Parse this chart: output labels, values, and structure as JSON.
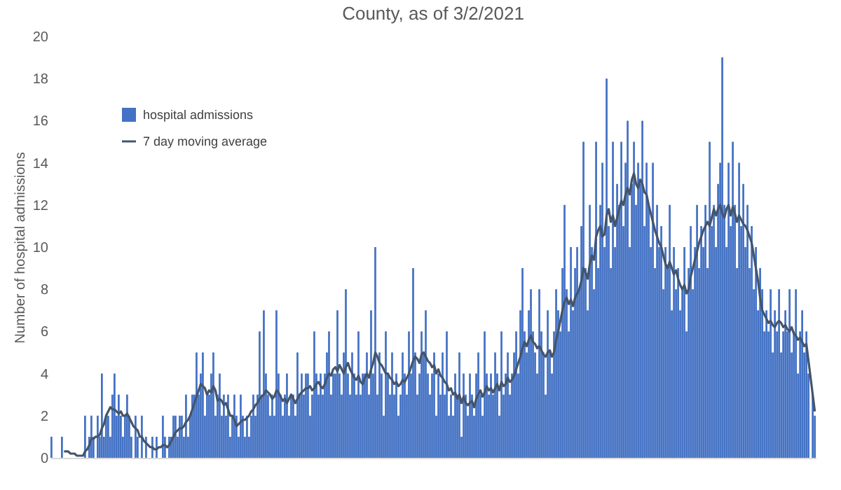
{
  "chart_data": {
    "type": "bar",
    "title": "County, as of 3/2/2021",
    "ylabel": "Number of hospital admissions",
    "ylim": [
      0,
      20
    ],
    "yticks": [
      0,
      2,
      4,
      6,
      8,
      10,
      12,
      14,
      16,
      18,
      20
    ],
    "grid": false,
    "legend": "top left",
    "categories": [
      null,
      null,
      null,
      null,
      null,
      null,
      null,
      null,
      null,
      null,
      null,
      null,
      null,
      null,
      null,
      null,
      null,
      null,
      null,
      null,
      null,
      null,
      null,
      null,
      null,
      null,
      null,
      null,
      null,
      null,
      null,
      null,
      null,
      null,
      null,
      null,
      null,
      null,
      null,
      null,
      null,
      null,
      null,
      null,
      null,
      null,
      null,
      null,
      null,
      null,
      null,
      null,
      null,
      null,
      null,
      null,
      null,
      null,
      null,
      null,
      null,
      null,
      null,
      null,
      null,
      null,
      null,
      null,
      null,
      null,
      null,
      null,
      null,
      null,
      null,
      null,
      null,
      null,
      null,
      null,
      null,
      null,
      null,
      null,
      null,
      null,
      null,
      null,
      null,
      null,
      null,
      null,
      null,
      null,
      null,
      null,
      null,
      null,
      null,
      null,
      null,
      null,
      null,
      null,
      null,
      null,
      null,
      null,
      null,
      null,
      null,
      null,
      null,
      null,
      null,
      null,
      null,
      null,
      null,
      null,
      null,
      null,
      null,
      null,
      null,
      null,
      null,
      null,
      null,
      null,
      null,
      null,
      null,
      null,
      null,
      null,
      null,
      null,
      null,
      null,
      null,
      null,
      null,
      null,
      null,
      null,
      null,
      null,
      null,
      null,
      null,
      null,
      null,
      null,
      null,
      null,
      null,
      null,
      null,
      null,
      null,
      null,
      null,
      null,
      null,
      null,
      null,
      null,
      null,
      null,
      null,
      null,
      null,
      null,
      null,
      null,
      null,
      null,
      null,
      null,
      null,
      null,
      null,
      null,
      null,
      null,
      null,
      null,
      null,
      null,
      null,
      null,
      null,
      null,
      null,
      null,
      null,
      null,
      null,
      null,
      null,
      null,
      null,
      null,
      null,
      null,
      null,
      null,
      null,
      null,
      null,
      null,
      null,
      null,
      null,
      null,
      null,
      null,
      null,
      null,
      null,
      null,
      null,
      null,
      null,
      null,
      null,
      null,
      null,
      null,
      null,
      null,
      null,
      null,
      null,
      null,
      null,
      null,
      null,
      null,
      null,
      null,
      null,
      null,
      null,
      null,
      null,
      null,
      null,
      null,
      null,
      null,
      null,
      null,
      null,
      null,
      null,
      null,
      null,
      null,
      null,
      null,
      null,
      null,
      null,
      null,
      null,
      null,
      null,
      null,
      null,
      null,
      null,
      null,
      null,
      null,
      null,
      null,
      null,
      null,
      null,
      null,
      null,
      null,
      null,
      null,
      null,
      null,
      null,
      null,
      null,
      null,
      null,
      null,
      null,
      null,
      null,
      null,
      null,
      null,
      null,
      null,
      null,
      null,
      null,
      null,
      null,
      null,
      null,
      null,
      null,
      null,
      null,
      null,
      null,
      null,
      null,
      null,
      null,
      null,
      null,
      null,
      null,
      null,
      null,
      null,
      null,
      null,
      null,
      null,
      null,
      null,
      null,
      null,
      null,
      null,
      null,
      null,
      null,
      null,
      null,
      null,
      null,
      null,
      null,
      null,
      null,
      null,
      null,
      null,
      null,
      null,
      null,
      null,
      null,
      null,
      null,
      null,
      null,
      null,
      null,
      null,
      null,
      null
    ],
    "series": [
      {
        "name": "hospital admissions",
        "color": "#4472c4",
        "values": [
          1,
          0,
          0,
          0,
          0,
          1,
          0,
          0,
          0,
          0,
          0,
          0,
          0,
          0,
          0,
          0,
          2,
          0,
          1,
          2,
          1,
          0,
          2,
          1,
          4,
          1,
          2,
          2,
          1,
          3,
          4,
          2,
          3,
          2,
          1,
          2,
          3,
          2,
          1,
          0,
          2,
          1,
          0,
          2,
          0,
          1,
          0,
          0,
          1,
          0,
          1,
          0,
          0,
          2,
          1,
          0,
          1,
          1,
          2,
          2,
          1,
          2,
          2,
          1,
          3,
          1,
          2,
          3,
          3,
          5,
          3,
          4,
          5,
          2,
          3,
          3,
          4,
          5,
          2,
          3,
          4,
          2,
          3,
          2,
          3,
          1,
          2,
          3,
          2,
          1,
          3,
          2,
          1,
          2,
          1,
          2,
          3,
          2,
          3,
          6,
          3,
          7,
          4,
          3,
          2,
          3,
          2,
          7,
          4,
          3,
          2,
          3,
          4,
          2,
          3,
          3,
          2,
          5,
          3,
          4,
          3,
          4,
          4,
          2,
          3,
          6,
          4,
          3,
          4,
          3,
          4,
          5,
          6,
          3,
          4,
          4,
          7,
          4,
          3,
          5,
          8,
          4,
          3,
          5,
          4,
          3,
          6,
          3,
          4,
          4,
          5,
          3,
          7,
          4,
          10,
          3,
          5,
          4,
          2,
          6,
          4,
          3,
          5,
          3,
          4,
          2,
          3,
          5,
          4,
          3,
          6,
          4,
          9,
          5,
          3,
          4,
          6,
          5,
          7,
          4,
          3,
          4,
          5,
          2,
          4,
          3,
          5,
          3,
          6,
          2,
          3,
          2,
          4,
          3,
          5,
          1,
          4,
          3,
          2,
          4,
          3,
          2,
          4,
          5,
          3,
          2,
          6,
          4,
          3,
          4,
          3,
          5,
          4,
          2,
          6,
          3,
          4,
          5,
          3,
          4,
          5,
          6,
          4,
          7,
          9,
          6,
          5,
          7,
          8,
          6,
          5,
          4,
          8,
          6,
          5,
          3,
          7,
          5,
          4,
          6,
          8,
          7,
          6,
          9,
          12,
          8,
          6,
          10,
          7,
          9,
          10,
          8,
          11,
          15,
          9,
          7,
          12,
          10,
          8,
          15,
          9,
          12,
          14,
          10,
          18,
          11,
          9,
          15,
          10,
          13,
          12,
          15,
          11,
          14,
          16,
          10,
          13,
          15,
          12,
          14,
          13,
          16,
          11,
          14,
          12,
          10,
          14,
          9,
          12,
          10,
          11,
          8,
          10,
          9,
          12,
          7,
          10,
          8,
          9,
          7,
          8,
          10,
          6,
          9,
          11,
          8,
          10,
          12,
          9,
          11,
          10,
          12,
          9,
          15,
          11,
          12,
          10,
          13,
          14,
          19,
          12,
          10,
          14,
          11,
          15,
          12,
          9,
          14,
          11,
          13,
          10,
          12,
          9,
          11,
          8,
          10,
          7,
          9,
          8,
          6,
          7,
          6,
          8,
          5,
          7,
          6,
          8,
          5,
          6,
          7,
          6,
          8,
          5,
          6,
          8,
          4,
          6,
          7,
          5,
          6,
          4,
          0,
          3,
          2
        ]
      },
      {
        "name": "7 day moving average",
        "type": "line",
        "color": "#44546a",
        "values": [
          null,
          null,
          null,
          null,
          null,
          null,
          0.3,
          0.3,
          0.3,
          0.2,
          0.2,
          0.2,
          0.1,
          0.1,
          0.1,
          0.1,
          0.3,
          0.4,
          0.6,
          0.9,
          0.9,
          1,
          1,
          1.1,
          1.4,
          1.6,
          2,
          2.2,
          2.4,
          2.3,
          2.3,
          2.2,
          2.1,
          2.2,
          2,
          2,
          2.1,
          1.9,
          1.7,
          1.5,
          1.4,
          1.3,
          1,
          1,
          0.8,
          0.7,
          0.6,
          0.5,
          0.5,
          0.4,
          0.4,
          0.5,
          0.5,
          0.6,
          0.6,
          0.5,
          0.6,
          0.8,
          1,
          1.2,
          1.3,
          1.4,
          1.4,
          1.5,
          1.7,
          1.8,
          2,
          2.3,
          2.6,
          2.9,
          3.2,
          3.5,
          3.4,
          3.3,
          3,
          3.2,
          3.1,
          3.4,
          3.2,
          2.7,
          2.8,
          2.7,
          2.5,
          2.6,
          2.3,
          2,
          2,
          1.8,
          1.5,
          1.6,
          1.7,
          1.8,
          1.8,
          1.9,
          2,
          2.2,
          2.3,
          2.5,
          2.6,
          2.8,
          2.9,
          3,
          3.2,
          3.1,
          3,
          2.8,
          2.9,
          3.2,
          3.1,
          2.9,
          2.7,
          2.8,
          2.6,
          2.8,
          3,
          2.8,
          2.6,
          2.8,
          3,
          3.1,
          3.2,
          3.3,
          3.3,
          3.4,
          3.2,
          3.3,
          3.5,
          3.6,
          3.4,
          3.3,
          3.5,
          3.8,
          4,
          3.9,
          4.2,
          4.3,
          4.1,
          4.4,
          4.2,
          4,
          4.3,
          4.5,
          4.2,
          4,
          3.8,
          3.7,
          3.9,
          3.6,
          3.5,
          3.8,
          4,
          3.8,
          4.2,
          4.5,
          5,
          4.8,
          4.5,
          4.4,
          4.2,
          4,
          4,
          3.8,
          3.7,
          3.5,
          3.6,
          3.4,
          3.5,
          3.7,
          3.6,
          3.8,
          4,
          4.3,
          4.6,
          4.8,
          4.7,
          4.5,
          4.9,
          5,
          4.8,
          4.6,
          4.5,
          4.3,
          4.4,
          4,
          4.2,
          3.9,
          3.8,
          3.6,
          3.5,
          3.2,
          3.3,
          3,
          3.1,
          2.8,
          3,
          2.6,
          2.9,
          2.6,
          2.5,
          2.6,
          2.7,
          2.4,
          2.8,
          3,
          3.2,
          2.9,
          3.1,
          3.4,
          3.2,
          3.3,
          3.1,
          3.3,
          3.5,
          3.2,
          3.6,
          3.4,
          3.5,
          3.8,
          3.6,
          3.7,
          3.9,
          4.2,
          4.5,
          4.8,
          5.2,
          5.5,
          5.3,
          5.6,
          5.8,
          5.5,
          5.4,
          5.2,
          5.3,
          5.1,
          4.9,
          4.8,
          5,
          5.1,
          4.8,
          5,
          5.6,
          6,
          6.5,
          7,
          7.4,
          7.6,
          7.3,
          7.5,
          7.2,
          7.6,
          7.8,
          8,
          8.4,
          9,
          8.8,
          8.5,
          9.2,
          9.6,
          9.4,
          10.5,
          10.8,
          11,
          10.5,
          10.6,
          11.5,
          11.8,
          11.2,
          11.5,
          11,
          11.4,
          11.8,
          12.2,
          12,
          12.5,
          12.8,
          12.5,
          13.2,
          13.5,
          13,
          12.8,
          13.2,
          13,
          12.6,
          12.5,
          12,
          11.6,
          11.2,
          10.8,
          10.5,
          10.2,
          10,
          9.6,
          9.2,
          9,
          9.3,
          9,
          8.7,
          8.9,
          8.5,
          8.2,
          8,
          8.2,
          7.8,
          8,
          8.6,
          9,
          9.4,
          9.8,
          10.2,
          10.5,
          10.8,
          11,
          11.2,
          11,
          11.4,
          11.8,
          11.5,
          11.8,
          12,
          11.6,
          11.4,
          11.8,
          12,
          11.5,
          11.9,
          11.6,
          11.2,
          11.5,
          11.3,
          11.1,
          11,
          10.8,
          10.5,
          10.2,
          9.6,
          9,
          8.4,
          7.6,
          7,
          6.8,
          6.6,
          6.4,
          6.5,
          6.3,
          6.2,
          6.4,
          6.5,
          6.4,
          6.2,
          6.3,
          6.1,
          6,
          6.2,
          5.9,
          5.8,
          5.6,
          5.7,
          5.5,
          5.3,
          5.4,
          4.6,
          3.8,
          3,
          2.2
        ]
      }
    ]
  }
}
